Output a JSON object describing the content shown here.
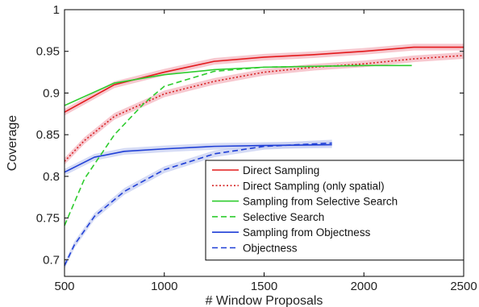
{
  "chart_data": {
    "type": "line",
    "title": "",
    "xlabel": "# Window Proposals",
    "ylabel": "Coverage",
    "xlim": [
      500,
      2500
    ],
    "ylim": [
      0.68,
      1.0
    ],
    "xticks": [
      500,
      1000,
      1500,
      2000,
      2500
    ],
    "xtick_labels": [
      "500",
      "1000",
      "1500",
      "2000",
      "2500"
    ],
    "yticks": [
      0.7,
      0.75,
      0.8,
      0.85,
      0.9,
      0.95,
      1.0
    ],
    "ytick_labels": [
      "0.7",
      "0.75",
      "0.8",
      "0.85",
      "0.9",
      "0.95",
      "1"
    ],
    "grid": false,
    "legend_position": "lower-right",
    "series": [
      {
        "name": "Direct Sampling",
        "color": "#e31a1c",
        "dash": "solid",
        "band": true,
        "band_color": "#f4b6bf",
        "x": [
          500,
          750,
          1000,
          1250,
          1500,
          1750,
          2000,
          2250,
          2500
        ],
        "y": [
          0.877,
          0.91,
          0.925,
          0.938,
          0.943,
          0.946,
          0.95,
          0.955,
          0.955
        ]
      },
      {
        "name": "Direct Sampling (only spatial)",
        "color": "#d62020",
        "dash": "dotted",
        "band": true,
        "band_color": "#f4b6bf",
        "x": [
          500,
          600,
          750,
          900,
          1000,
          1250,
          1500,
          1750,
          2000,
          2250,
          2500
        ],
        "y": [
          0.818,
          0.843,
          0.872,
          0.888,
          0.899,
          0.914,
          0.925,
          0.931,
          0.935,
          0.941,
          0.945
        ]
      },
      {
        "name": "Sampling from Selective Search",
        "color": "#2ecc2e",
        "dash": "solid",
        "band": false,
        "x": [
          500,
          750,
          1000,
          1250,
          1500,
          1750,
          2000,
          2240
        ],
        "y": [
          0.885,
          0.912,
          0.922,
          0.928,
          0.931,
          0.932,
          0.933,
          0.933
        ]
      },
      {
        "name": "Selective Search",
        "color": "#2ecc2e",
        "dash": "dashed",
        "band": false,
        "x": [
          500,
          600,
          750,
          900,
          1000,
          1250,
          1500,
          1750,
          2000
        ],
        "y": [
          0.741,
          0.797,
          0.85,
          0.888,
          0.908,
          0.926,
          0.931,
          0.932,
          0.933
        ]
      },
      {
        "name": "Sampling from Objectness",
        "color": "#1f3fd6",
        "dash": "solid",
        "band": true,
        "band_color": "#c7cff2",
        "x": [
          500,
          650,
          800,
          1000,
          1250,
          1500,
          1840
        ],
        "y": [
          0.805,
          0.823,
          0.83,
          0.833,
          0.836,
          0.837,
          0.838
        ]
      },
      {
        "name": "Objectness",
        "color": "#1f3fd6",
        "dash": "dashed",
        "band": true,
        "band_color": "#c7cff2",
        "x": [
          500,
          550,
          650,
          800,
          1000,
          1250,
          1500,
          1840
        ],
        "y": [
          0.693,
          0.718,
          0.752,
          0.782,
          0.808,
          0.827,
          0.836,
          0.84
        ]
      }
    ]
  }
}
